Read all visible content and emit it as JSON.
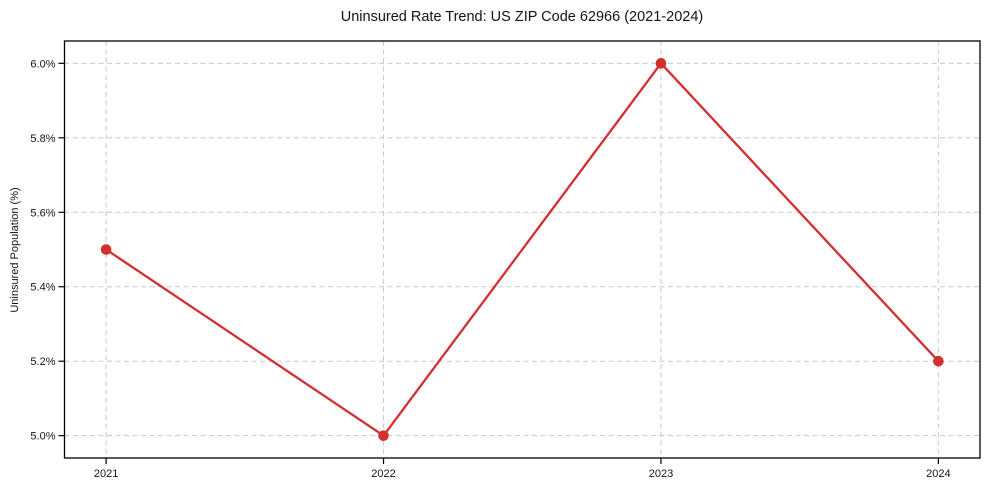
{
  "chart_data": {
    "type": "line",
    "title": "Uninsured Rate Trend: US ZIP Code 62966 (2021-2024)",
    "xlabel": "",
    "ylabel": "Uninsured Population (%)",
    "x": [
      2021,
      2022,
      2023,
      2024
    ],
    "values": [
      5.5,
      5.0,
      6.0,
      5.2
    ],
    "xticks": [
      2021,
      2022,
      2023,
      2024
    ],
    "xtick_labels": [
      "2021",
      "2022",
      "2023",
      "2024"
    ],
    "yticks": [
      5.0,
      5.2,
      5.4,
      5.6,
      5.8,
      6.0
    ],
    "ytick_labels": [
      "5.0%",
      "5.2%",
      "5.4%",
      "5.6%",
      "5.8%",
      "6.0%"
    ],
    "xlim": [
      2020.85,
      2024.15
    ],
    "ylim": [
      4.94,
      6.06
    ],
    "grid": true,
    "legend": "none",
    "style": {
      "line_color": "#d32f2f",
      "marker_color": "#d32f2f",
      "grid_color": "#c8c8c8",
      "spine_color": "#000000",
      "text_color": "#141414",
      "background": "#ffffff",
      "line_width": 2.3,
      "marker_radius": 5.3,
      "grid_dash": "5 3.5"
    }
  }
}
